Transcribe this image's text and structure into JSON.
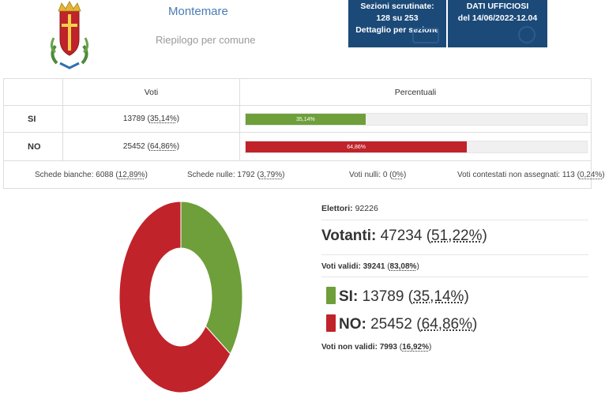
{
  "header": {
    "comune_name": "Montemare",
    "subtitle": "Riepilogo per comune",
    "sezioni_label": "Sezioni scrutinate:",
    "sezioni_value": "128 su 253",
    "dettaglio_link": "Dettaglio per sezione",
    "dati_label": "DATI UFFICIOSI",
    "dati_timestamp": "del 14/06/2022-12.04"
  },
  "table": {
    "col_voti": "Voti",
    "col_percentuali": "Percentuali",
    "rows": [
      {
        "label": "SI",
        "votes": "13789",
        "pct": "35,14%",
        "value": 35.14,
        "color": "#6e9f3a"
      },
      {
        "label": "NO",
        "votes": "25452",
        "pct": "64,86%",
        "value": 64.86,
        "color": "#c0232a"
      }
    ]
  },
  "schede": {
    "bianche_label": "Schede bianche:",
    "bianche_value": "6088",
    "bianche_pct": "12,89%",
    "nulle_label": "Schede nulle:",
    "nulle_value": "1792",
    "nulle_pct": "3,79%",
    "nulli_label": "Voti nulli:",
    "nulli_value": "0",
    "nulli_pct": "0%",
    "contestati_label": "Voti contestati non assegnati:",
    "contestati_value": "113",
    "contestati_pct": "0,24%"
  },
  "stats": {
    "elettori_label": "Elettori:",
    "elettori_value": "92226",
    "votanti_label": "Votanti:",
    "votanti_value": "47234",
    "votanti_pct": "51,22%",
    "validi_label": "Voti validi:",
    "validi_value": "39241",
    "validi_pct": "83,08%",
    "si_label": "SI:",
    "si_value": "13789",
    "si_pct": "35,14%",
    "no_label": "NO:",
    "no_value": "25452",
    "no_pct": "64,86%",
    "nonvalidi_label": "Voti non validi:",
    "nonvalidi_value": "7993",
    "nonvalidi_pct": "16,92%"
  },
  "chart_data": {
    "type": "pie",
    "categories": [
      "SI",
      "NO"
    ],
    "values": [
      35.14,
      64.86
    ],
    "colors": [
      "#6e9f3a",
      "#c0232a"
    ],
    "title": ""
  }
}
